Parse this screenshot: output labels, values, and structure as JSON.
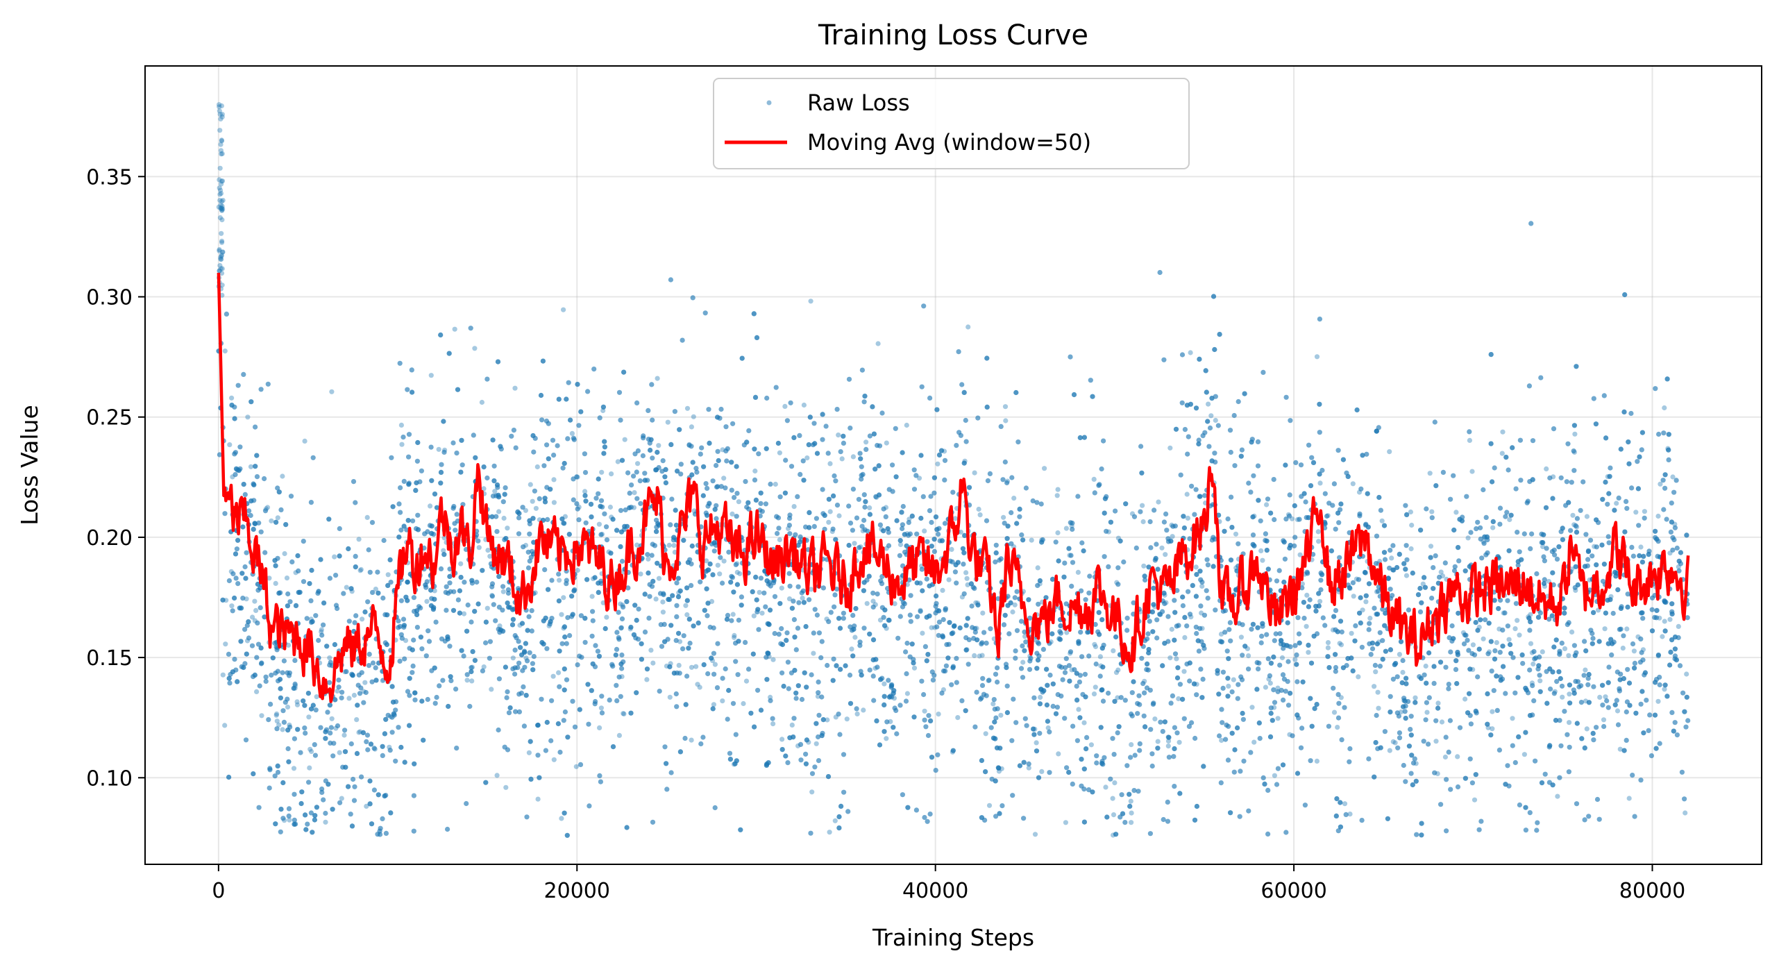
{
  "chart_data": {
    "type": "scatter",
    "title": "Training Loss Curve",
    "xlabel": "Training Steps",
    "ylabel": "Loss Value",
    "xlim": [
      -4100,
      86100
    ],
    "ylim": [
      0.064,
      0.396
    ],
    "xticks": [
      0,
      20000,
      40000,
      60000,
      80000
    ],
    "yticks": [
      0.1,
      0.15,
      0.2,
      0.25,
      0.3,
      0.35
    ],
    "xtick_labels": [
      "0",
      "20000",
      "40000",
      "60000",
      "80000"
    ],
    "ytick_labels": [
      "0.10",
      "0.15",
      "0.20",
      "0.25",
      "0.30",
      "0.35"
    ],
    "grid": true,
    "legend_position": "top-center",
    "x_range_observed": [
      0,
      82000
    ],
    "series": [
      {
        "name": "Raw Loss",
        "kind": "scatter",
        "color": "#1f77b4",
        "opacity": 0.4,
        "note": "dense noisy per-step loss points around the moving average, spread approx ±0.05"
      },
      {
        "name": "Moving Avg (window=50)",
        "kind": "line",
        "color": "#ff0000",
        "x": [
          0,
          100,
          300,
          600,
          1000,
          1500,
          2000,
          2500,
          3000,
          3500,
          4000,
          4500,
          5000,
          5500,
          6000,
          6500,
          7000,
          7500,
          8000,
          8500,
          9000,
          9500,
          10000,
          10500,
          11000,
          11500,
          12000,
          12500,
          13000,
          13500,
          14000,
          14500,
          15000,
          16000,
          17000,
          18000,
          19000,
          20000,
          21000,
          22000,
          23000,
          24000,
          24500,
          25000,
          26000,
          26500,
          27000,
          28000,
          29000,
          30000,
          31000,
          32000,
          33000,
          34000,
          35000,
          36000,
          37000,
          38000,
          39000,
          40000,
          41000,
          41500,
          42000,
          43000,
          43500,
          44000,
          45000,
          46000,
          47000,
          48000,
          49000,
          50000,
          51000,
          52000,
          53000,
          54000,
          55000,
          55500,
          56000,
          57000,
          58000,
          59000,
          60000,
          61000,
          61500,
          62000,
          63000,
          64000,
          65000,
          66000,
          67000,
          68000,
          69000,
          70000,
          71000,
          72000,
          73000,
          74000,
          75000,
          75500,
          76000,
          77000,
          78000,
          79000,
          80000,
          81000,
          82000
        ],
        "y": [
          0.31,
          0.28,
          0.215,
          0.21,
          0.208,
          0.205,
          0.195,
          0.18,
          0.162,
          0.16,
          0.158,
          0.16,
          0.155,
          0.148,
          0.14,
          0.145,
          0.155,
          0.152,
          0.158,
          0.16,
          0.157,
          0.15,
          0.175,
          0.2,
          0.188,
          0.198,
          0.19,
          0.21,
          0.198,
          0.205,
          0.192,
          0.23,
          0.2,
          0.19,
          0.175,
          0.2,
          0.192,
          0.198,
          0.19,
          0.182,
          0.195,
          0.21,
          0.215,
          0.19,
          0.205,
          0.215,
          0.198,
          0.205,
          0.19,
          0.2,
          0.188,
          0.195,
          0.183,
          0.188,
          0.18,
          0.198,
          0.19,
          0.182,
          0.188,
          0.185,
          0.2,
          0.222,
          0.195,
          0.18,
          0.158,
          0.19,
          0.17,
          0.165,
          0.175,
          0.17,
          0.178,
          0.168,
          0.155,
          0.182,
          0.175,
          0.195,
          0.205,
          0.235,
          0.17,
          0.175,
          0.19,
          0.165,
          0.178,
          0.195,
          0.22,
          0.18,
          0.188,
          0.2,
          0.175,
          0.16,
          0.155,
          0.17,
          0.178,
          0.175,
          0.18,
          0.178,
          0.182,
          0.172,
          0.175,
          0.2,
          0.175,
          0.182,
          0.195,
          0.178,
          0.185,
          0.19,
          0.18
        ]
      }
    ]
  }
}
